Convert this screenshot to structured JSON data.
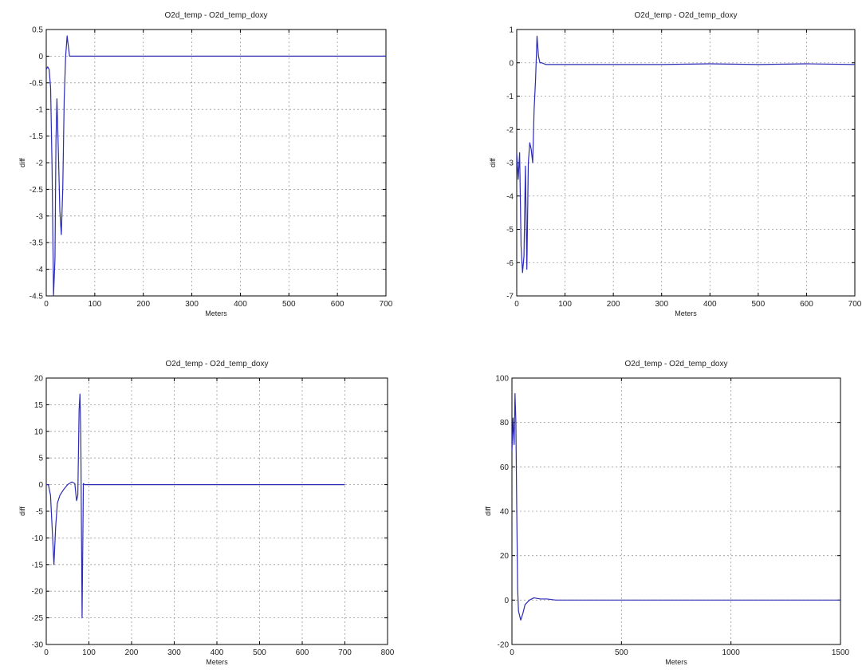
{
  "chart_data": [
    {
      "type": "line",
      "title": "O2d_temp - O2d_temp_doxy",
      "xlabel": "Meters",
      "ylabel": "diff",
      "xlim": [
        0,
        700
      ],
      "ylim": [
        -4.5,
        0.5
      ],
      "xticks": [
        0,
        100,
        200,
        300,
        400,
        500,
        600,
        700
      ],
      "yticks": [
        0.5,
        0,
        -0.5,
        -1,
        -1.5,
        -2,
        -2.5,
        -3,
        -3.5,
        -4,
        -4.5
      ],
      "xtick_labels": [
        "0",
        "100",
        "200",
        "300",
        "400",
        "500",
        "600",
        "700"
      ],
      "ytick_labels": [
        "0.5",
        "0",
        "-0.5",
        "-1",
        "-1.5",
        "-2",
        "-2.5",
        "-3",
        "-3.5",
        "-4",
        "-4.5"
      ],
      "grid": true,
      "series": [
        {
          "color": "#2b2bb5",
          "x": [
            0,
            3,
            6,
            9,
            12,
            15,
            18,
            20,
            22,
            25,
            28,
            31,
            34,
            37,
            40,
            43,
            46,
            48,
            50,
            700
          ],
          "y": [
            -0.25,
            -0.2,
            -0.25,
            -0.6,
            -2.1,
            -4.5,
            -3.8,
            -1.6,
            -0.8,
            -1.8,
            -2.9,
            -3.35,
            -2.5,
            -0.8,
            0.0,
            0.38,
            0.15,
            0.0,
            0.0,
            0.0
          ]
        }
      ]
    },
    {
      "type": "line",
      "title": "O2d_temp - O2d_temp_doxy",
      "xlabel": "Meters",
      "ylabel": "diff",
      "xlim": [
        0,
        700
      ],
      "ylim": [
        -7,
        1
      ],
      "xticks": [
        0,
        100,
        200,
        300,
        400,
        500,
        600,
        700
      ],
      "yticks": [
        1,
        0,
        -1,
        -2,
        -3,
        -4,
        -5,
        -6,
        -7
      ],
      "xtick_labels": [
        "0",
        "100",
        "200",
        "300",
        "400",
        "500",
        "600",
        "700"
      ],
      "ytick_labels": [
        "1",
        "0",
        "-1",
        "-2",
        "-3",
        "-4",
        "-5",
        "-6",
        "-7"
      ],
      "grid": true,
      "series": [
        {
          "color": "#2b2bb5",
          "x": [
            0,
            3,
            6,
            9,
            12,
            15,
            18,
            21,
            24,
            27,
            30,
            33,
            36,
            39,
            42,
            45,
            48,
            52,
            60,
            100,
            200,
            300,
            400,
            500,
            600,
            700
          ],
          "y": [
            -2.7,
            -3.5,
            -2.7,
            -5.5,
            -6.3,
            -5.8,
            -3.1,
            -6.2,
            -3.0,
            -2.4,
            -2.6,
            -3.0,
            -1.4,
            -0.5,
            0.8,
            0.2,
            0.0,
            0.0,
            -0.05,
            -0.05,
            -0.05,
            -0.05,
            -0.03,
            -0.05,
            -0.03,
            -0.05
          ]
        }
      ]
    },
    {
      "type": "line",
      "title": "O2d_temp - O2d_temp_doxy",
      "xlabel": "Meters",
      "ylabel": "diff",
      "xlim": [
        0,
        800
      ],
      "ylim": [
        -30,
        20
      ],
      "xticks": [
        0,
        100,
        200,
        300,
        400,
        500,
        600,
        700,
        800
      ],
      "yticks": [
        20,
        15,
        10,
        5,
        0,
        -5,
        -10,
        -15,
        -20,
        -25,
        -30
      ],
      "xtick_labels": [
        "0",
        "100",
        "200",
        "300",
        "400",
        "500",
        "600",
        "700",
        "800"
      ],
      "ytick_labels": [
        "20",
        "15",
        "10",
        "5",
        "0",
        "-5",
        "-10",
        "-15",
        "-20",
        "-25",
        "-30"
      ],
      "grid": true,
      "series": [
        {
          "color": "#2b2bb5",
          "x": [
            0,
            5,
            10,
            15,
            18,
            22,
            26,
            32,
            40,
            50,
            60,
            67,
            71,
            74,
            77,
            79,
            81,
            84,
            87,
            90,
            95,
            100,
            700
          ],
          "y": [
            0,
            0,
            -2,
            -10,
            -15,
            -8,
            -3.5,
            -2,
            -1,
            0,
            0.5,
            0.2,
            -3,
            -2,
            14,
            17,
            9,
            -25,
            0.2,
            0,
            0,
            0,
            0
          ]
        }
      ]
    },
    {
      "type": "line",
      "title": "O2d_temp - O2d_temp_doxy",
      "xlabel": "Meters",
      "ylabel": "diff",
      "xlim": [
        0,
        1500
      ],
      "ylim": [
        -20,
        100
      ],
      "xticks": [
        0,
        500,
        1000,
        1500
      ],
      "yticks": [
        100,
        80,
        60,
        40,
        20,
        0,
        -20
      ],
      "xtick_labels": [
        "0",
        "500",
        "1000",
        "1500"
      ],
      "ytick_labels": [
        "100",
        "80",
        "60",
        "40",
        "20",
        "0",
        "-20"
      ],
      "grid": true,
      "series": [
        {
          "color": "#2b2bb5",
          "x": [
            0,
            5,
            10,
            14,
            18,
            22,
            26,
            30,
            40,
            50,
            60,
            80,
            100,
            130,
            160,
            200,
            1500
          ],
          "y": [
            67,
            82,
            70,
            93,
            80,
            40,
            5,
            -5,
            -9,
            -6,
            -2,
            0,
            1,
            0.5,
            0.5,
            0,
            0
          ]
        }
      ]
    }
  ]
}
